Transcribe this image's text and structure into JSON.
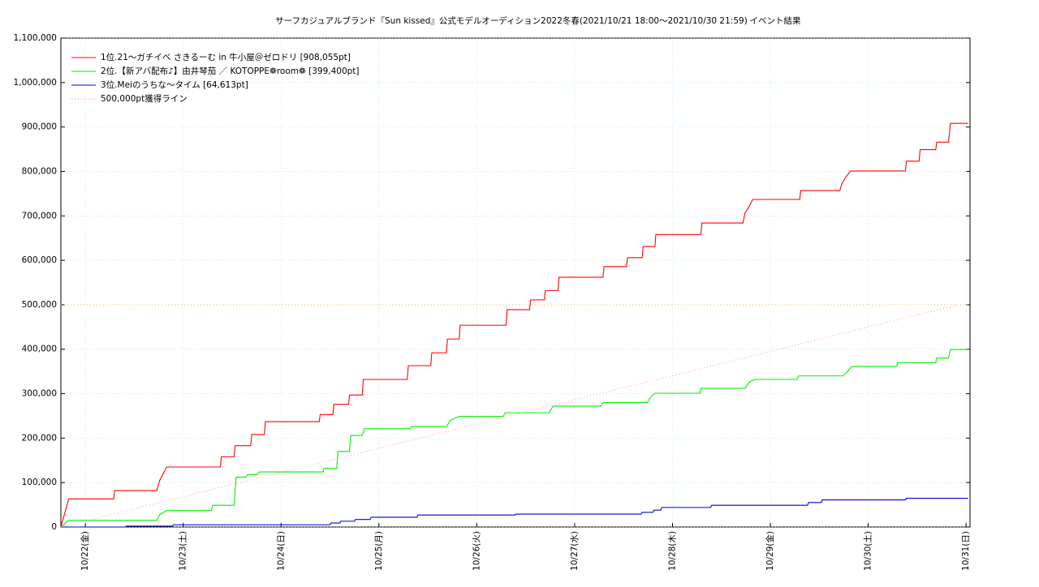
{
  "chart_data": {
    "type": "line",
    "title": "サーフカジュアルブランド『Sun kissed』公式モデルオーディション2022冬春(2021/10/21 18:00～2021/10/30 21:59)",
    "subtitle": "イベント結果",
    "xlim": [
      21.75,
      31.04
    ],
    "xticks": [
      {
        "value": 22,
        "label": "10/22(金)"
      },
      {
        "value": 23,
        "label": "10/23(土)"
      },
      {
        "value": 24,
        "label": "10/24(日)"
      },
      {
        "value": 25,
        "label": "10/25(月)"
      },
      {
        "value": 26,
        "label": "10/26(火)"
      },
      {
        "value": 27,
        "label": "10/27(水)"
      },
      {
        "value": 28,
        "label": "10/28(木)"
      },
      {
        "value": 29,
        "label": "10/29(金)"
      },
      {
        "value": 30,
        "label": "10/30(土)"
      },
      {
        "value": 31,
        "label": "10/31(日)"
      }
    ],
    "ylim": [
      0,
      1100000
    ],
    "yticks": [
      0,
      {
        "value": 100000,
        "label": "100,000"
      },
      {
        "value": 200000,
        "label": "200,000"
      },
      {
        "value": 300000,
        "label": "300,000"
      },
      {
        "value": 400000,
        "label": "400,000"
      },
      {
        "value": 500000,
        "label": "500,000"
      },
      {
        "value": 600000,
        "label": "600,000"
      },
      {
        "value": 700000,
        "label": "700,000"
      },
      {
        "value": 800000,
        "label": "800,000"
      },
      {
        "value": 900000,
        "label": "900,000"
      },
      {
        "value": 1000000,
        "label": "1,000,000"
      },
      {
        "value": 1100000,
        "label": "1,100,000"
      }
    ],
    "grid": true,
    "legend": "upper left",
    "reference_line": 500000,
    "reference_color": "#e8a040",
    "series": [
      {
        "name": "1位.21〜ガチイベ さきるーむ in 牛小屋＠ゼロドリ [908,055pt]",
        "color": "#ff0000",
        "style": "solid",
        "x": [
          21.75,
          21.83,
          22.29,
          22.3,
          22.73,
          22.76,
          22.79,
          22.83,
          23.38,
          23.39,
          23.52,
          23.53,
          23.69,
          23.7,
          23.83,
          23.84,
          24.39,
          24.4,
          24.53,
          24.54,
          24.69,
          24.7,
          24.83,
          24.84,
          25.29,
          25.3,
          25.53,
          25.54,
          25.69,
          25.7,
          25.82,
          25.83,
          26.3,
          26.31,
          26.54,
          26.55,
          26.69,
          26.7,
          26.83,
          26.84,
          27.29,
          27.3,
          27.53,
          27.54,
          27.69,
          27.7,
          27.82,
          27.83,
          28.29,
          28.3,
          28.72,
          28.74,
          28.78,
          28.82,
          29.3,
          29.31,
          29.71,
          29.73,
          29.77,
          29.82,
          30.38,
          30.39,
          30.52,
          30.53,
          30.69,
          30.7,
          30.82,
          30.84,
          31.02
        ],
        "values": [
          0,
          63000,
          63000,
          82000,
          82000,
          105000,
          118000,
          135000,
          135000,
          158000,
          158000,
          183000,
          183000,
          208000,
          208000,
          237000,
          237000,
          253000,
          253000,
          276000,
          276000,
          297000,
          297000,
          332000,
          332000,
          363000,
          363000,
          392000,
          392000,
          423000,
          423000,
          454000,
          454000,
          489000,
          489000,
          511000,
          511000,
          532000,
          532000,
          562000,
          562000,
          586000,
          586000,
          606000,
          606000,
          631000,
          631000,
          658000,
          658000,
          684000,
          684000,
          706000,
          720000,
          737000,
          737000,
          757000,
          757000,
          772000,
          787000,
          801000,
          801000,
          823000,
          823000,
          849000,
          849000,
          866000,
          866000,
          908055,
          908055
        ]
      },
      {
        "name": "2位.【新アバ配布♪】由井琴茄 ／ KOTOPPE❁room❁ [399,400pt]",
        "color": "#00ee00",
        "style": "solid",
        "x": [
          21.75,
          21.83,
          22.73,
          22.76,
          22.83,
          23.29,
          23.3,
          23.52,
          23.54,
          23.64,
          23.66,
          23.76,
          23.78,
          24.43,
          24.44,
          24.57,
          24.58,
          24.7,
          24.71,
          24.83,
          24.85,
          25.32,
          25.33,
          25.69,
          25.73,
          25.82,
          26.27,
          26.29,
          26.74,
          26.78,
          27.27,
          27.29,
          27.74,
          27.78,
          27.82,
          28.28,
          28.29,
          28.74,
          28.78,
          28.84,
          29.27,
          29.29,
          29.74,
          29.79,
          29.83,
          30.29,
          30.3,
          30.69,
          30.7,
          30.82,
          30.84,
          31.02
        ],
        "values": [
          0,
          15000,
          15000,
          28000,
          37000,
          37000,
          49000,
          49000,
          112000,
          112000,
          118000,
          118000,
          124000,
          124000,
          132000,
          132000,
          170000,
          170000,
          206000,
          206000,
          221000,
          221000,
          226000,
          226000,
          240000,
          249000,
          249000,
          257000,
          257000,
          272000,
          272000,
          280000,
          280000,
          293000,
          301000,
          301000,
          312000,
          312000,
          325000,
          332000,
          332000,
          340000,
          340000,
          350000,
          361000,
          361000,
          370000,
          370000,
          380000,
          380000,
          399400,
          399400
        ]
      },
      {
        "name": "3位.Meiのうちな〜タイム [64,613pt]",
        "color": "#0000cc",
        "style": "solid",
        "x": [
          21.75,
          22.41,
          22.42,
          22.89,
          22.9,
          24.5,
          24.51,
          24.6,
          24.61,
          24.75,
          24.76,
          24.91,
          24.92,
          25.39,
          25.4,
          26.39,
          26.4,
          27.68,
          27.69,
          27.8,
          27.81,
          27.88,
          27.89,
          28.39,
          28.4,
          29.38,
          29.39,
          29.52,
          29.53,
          30.38,
          30.39,
          31.02
        ],
        "values": [
          0,
          0,
          2000,
          2000,
          5000,
          5000,
          9000,
          9000,
          13000,
          13000,
          17000,
          17000,
          22000,
          22000,
          27000,
          27000,
          29000,
          29000,
          33000,
          33000,
          38000,
          38000,
          44000,
          44000,
          49000,
          49000,
          55000,
          55000,
          61000,
          61000,
          64613,
          64613
        ]
      },
      {
        "name": "500,000pt獲得ライン",
        "color": "#ff8080",
        "style": "dotted",
        "x": [
          21.75,
          30.92
        ],
        "values": [
          0,
          500000
        ]
      }
    ]
  }
}
